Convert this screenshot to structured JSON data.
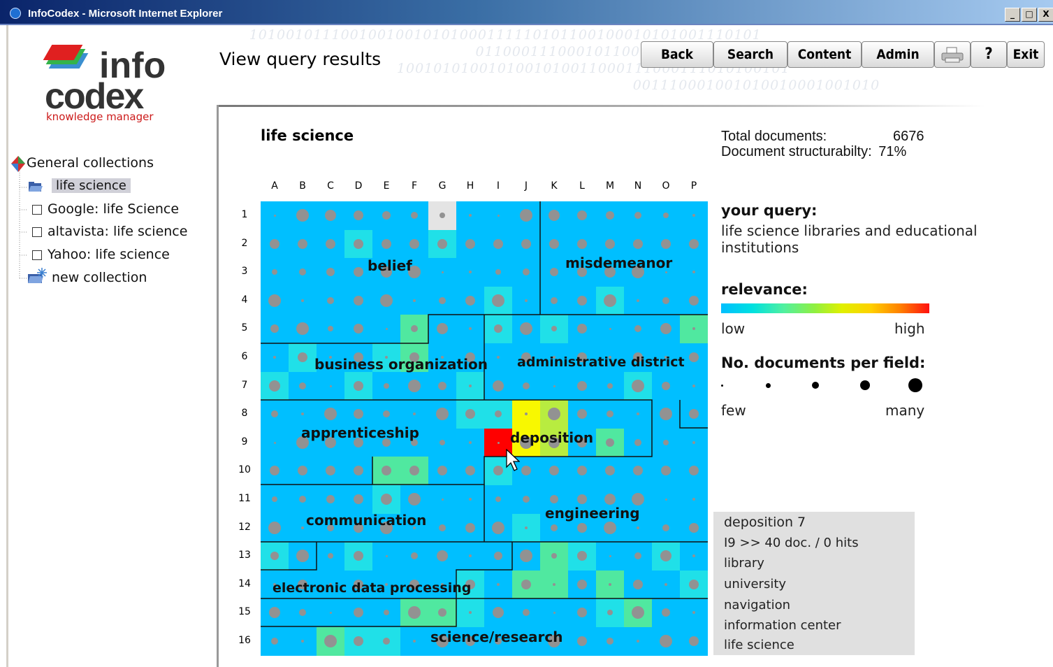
{
  "window": {
    "title": "InfoCodex - Microsoft Internet Explorer",
    "controls": [
      "_",
      "□",
      "X"
    ]
  },
  "logo": {
    "word1": "info",
    "word2": "codex",
    "tagline": "knowledge manager"
  },
  "tree": {
    "root": "General collections",
    "items": [
      "life science",
      "Google: life Science",
      "altavista: life science",
      "Yahoo: life science",
      "new collection"
    ],
    "selected": "life science"
  },
  "page_title": "View query results",
  "toolbar": {
    "back": "Back",
    "search": "Search",
    "content": "Content",
    "admin": "Admin",
    "help": "?",
    "exit": "Exit",
    "print_icon": "printer-icon"
  },
  "map": {
    "title": "life science",
    "columns": [
      "A",
      "B",
      "C",
      "D",
      "E",
      "F",
      "G",
      "H",
      "I",
      "J",
      "K",
      "L",
      "M",
      "N",
      "O",
      "P"
    ],
    "rows": [
      "1",
      "2",
      "3",
      "4",
      "5",
      "6",
      "7",
      "8",
      "9",
      "10",
      "11",
      "12",
      "13",
      "14",
      "15",
      "16"
    ],
    "base_color": "#00bfff",
    "cluster_labels": [
      "belief",
      "misdemeanor",
      "business organization",
      "administrative district",
      "apprenticeship",
      "deposition",
      "communication",
      "engineering",
      "electronic data processing",
      "science/research"
    ],
    "highlighted_cells": [
      {
        "cell": "G1",
        "color": "#e4e4e4"
      },
      {
        "cell": "D2",
        "color": "#20e0e8"
      },
      {
        "cell": "G2",
        "color": "#20e0e8"
      },
      {
        "cell": "I4",
        "color": "#20e0e8"
      },
      {
        "cell": "M4",
        "color": "#20e0e8"
      },
      {
        "cell": "F5",
        "color": "#50e8a0"
      },
      {
        "cell": "I5",
        "color": "#20e0e8"
      },
      {
        "cell": "K5",
        "color": "#20e0e8"
      },
      {
        "cell": "P5",
        "color": "#50e8a0"
      },
      {
        "cell": "B6",
        "color": "#20e0e8"
      },
      {
        "cell": "E6",
        "color": "#20e0e8"
      },
      {
        "cell": "F6",
        "color": "#50e8a0"
      },
      {
        "cell": "A7",
        "color": "#20e0e8"
      },
      {
        "cell": "D7",
        "color": "#20e0e8"
      },
      {
        "cell": "H7",
        "color": "#20e0e8"
      },
      {
        "cell": "N7",
        "color": "#20e0e8"
      },
      {
        "cell": "H8",
        "color": "#20e0e8"
      },
      {
        "cell": "I8",
        "color": "#20e0e8"
      },
      {
        "cell": "J8",
        "color": "#f8f800"
      },
      {
        "cell": "K8",
        "color": "#b8ec40"
      },
      {
        "cell": "I9",
        "color": "#ff0000"
      },
      {
        "cell": "J9",
        "color": "#f8f800"
      },
      {
        "cell": "K9",
        "color": "#b8ec40"
      },
      {
        "cell": "M9",
        "color": "#50e8a0"
      },
      {
        "cell": "E10",
        "color": "#50e8a0"
      },
      {
        "cell": "F10",
        "color": "#50e8a0"
      },
      {
        "cell": "I10",
        "color": "#20e0e8"
      },
      {
        "cell": "E11",
        "color": "#20e0e8"
      },
      {
        "cell": "J12",
        "color": "#20e0e8"
      },
      {
        "cell": "A13",
        "color": "#20e0e8"
      },
      {
        "cell": "D13",
        "color": "#20e0e8"
      },
      {
        "cell": "K13",
        "color": "#50e8a0"
      },
      {
        "cell": "L13",
        "color": "#20e0e8"
      },
      {
        "cell": "O13",
        "color": "#20e0e8"
      },
      {
        "cell": "H14",
        "color": "#20e0e8"
      },
      {
        "cell": "J14",
        "color": "#50e8a0"
      },
      {
        "cell": "K14",
        "color": "#50e8a0"
      },
      {
        "cell": "M14",
        "color": "#50e8a0"
      },
      {
        "cell": "P14",
        "color": "#20e0e8"
      },
      {
        "cell": "F15",
        "color": "#50e8a0"
      },
      {
        "cell": "G15",
        "color": "#50e8a0"
      },
      {
        "cell": "H15",
        "color": "#20e0e8"
      },
      {
        "cell": "M15",
        "color": "#20e0e8"
      },
      {
        "cell": "N15",
        "color": "#50e8a0"
      },
      {
        "cell": "C16",
        "color": "#50e8a0"
      },
      {
        "cell": "D16",
        "color": "#20e0e8"
      },
      {
        "cell": "E16",
        "color": "#20e0e8"
      }
    ]
  },
  "stats": {
    "total_label": "Total documents:",
    "total_value": "6676",
    "struct_label": "Document structurabilty:",
    "struct_value": "71%"
  },
  "query": {
    "label": "your query:",
    "text": "life science libraries and educational institutions"
  },
  "relevance": {
    "label": "relevance:",
    "low": "low",
    "high": "high"
  },
  "docs_per_field": {
    "label": "No. documents per field:",
    "few": "few",
    "many": "many"
  },
  "info_box": {
    "title": "deposition 7",
    "cell_line": "I9  >>  40 doc.  / 0 hits",
    "terms": [
      "library",
      "university",
      "navigation",
      "information center",
      "life science"
    ]
  }
}
